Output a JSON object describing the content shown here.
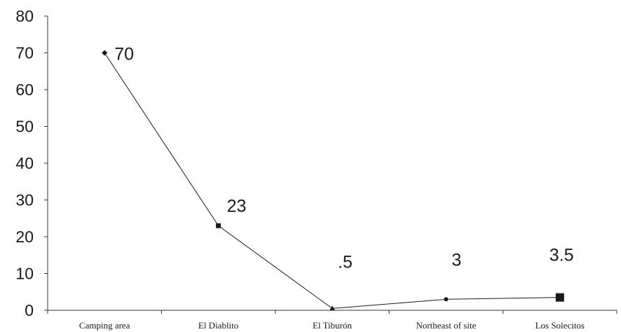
{
  "chart_data": {
    "type": "line",
    "categories": [
      "Camping area",
      "El Diablito",
      "El Tiburón",
      "Northeast of site",
      "Los Solecitos"
    ],
    "values": [
      70,
      23,
      0.5,
      3,
      3.5
    ],
    "data_labels": [
      "70",
      "23",
      ".5",
      "3",
      "3.5"
    ],
    "markers": [
      "diamond",
      "square",
      "triangle",
      "circle",
      "square"
    ],
    "y_ticks": [
      "0",
      "10",
      "20",
      "30",
      "40",
      "50",
      "60",
      "70",
      "80"
    ],
    "ylim": [
      0,
      80
    ],
    "grid": false,
    "legend": "none",
    "colors": {
      "line": "#1a1a1a",
      "text": "#1a1a1a",
      "axis": "#333333"
    }
  }
}
